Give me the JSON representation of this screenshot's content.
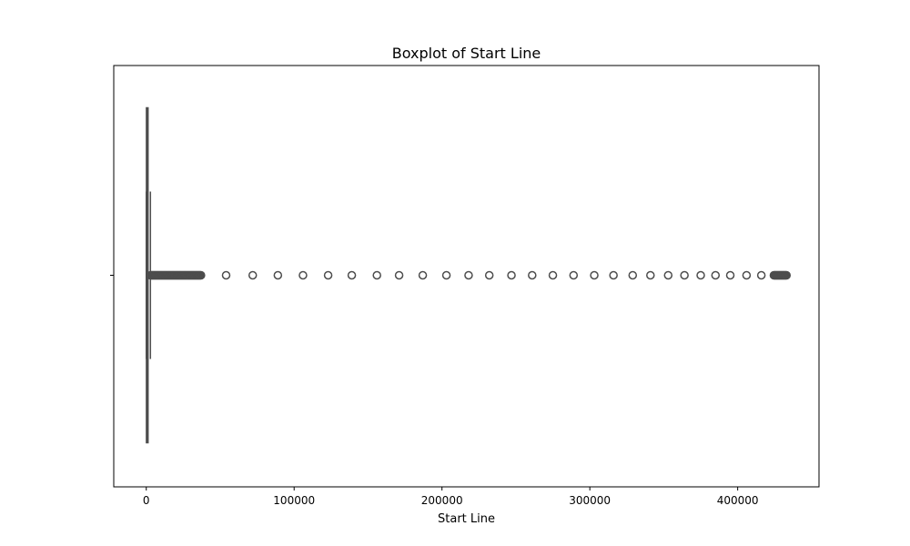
{
  "chart_data": {
    "type": "box",
    "orientation": "horizontal",
    "title": "Boxplot of Start Line",
    "xlabel": "Start Line",
    "ylabel": "",
    "xlim": [
      -22000,
      455000
    ],
    "x_ticks": [
      0,
      100000,
      200000,
      300000,
      400000
    ],
    "x_tick_labels": [
      "0",
      "100000",
      "200000",
      "300000",
      "400000"
    ],
    "grid": false,
    "box": {
      "q1": 100,
      "median": 500,
      "q3": 1200,
      "whisker_low": 1,
      "whisker_high": 2800
    },
    "outliers": [
      3000,
      3500,
      4000,
      4500,
      5000,
      5500,
      6000,
      6500,
      7000,
      7500,
      8000,
      8500,
      9000,
      9500,
      10000,
      10500,
      11000,
      11500,
      12000,
      12500,
      13000,
      13500,
      14000,
      14500,
      15000,
      15500,
      16000,
      16500,
      17000,
      17500,
      18000,
      18500,
      19000,
      19500,
      20000,
      20500,
      21000,
      21500,
      22000,
      22500,
      23000,
      23500,
      24000,
      24500,
      25000,
      25500,
      26000,
      26500,
      27000,
      27500,
      28000,
      28500,
      29000,
      29500,
      30000,
      30500,
      31000,
      31500,
      32000,
      32500,
      33000,
      33500,
      34000,
      34500,
      35000,
      35500,
      36000,
      36500,
      37000,
      54000,
      72000,
      89000,
      106000,
      123000,
      139000,
      156000,
      171000,
      187000,
      203000,
      218000,
      232000,
      247000,
      261000,
      275000,
      289000,
      303000,
      316000,
      329000,
      341000,
      353000,
      364000,
      375000,
      385000,
      395000,
      406000,
      416000,
      424500,
      425000,
      425500,
      426000,
      426500,
      427000,
      427500,
      428000,
      428500,
      429000,
      429500,
      430000,
      430500,
      431000,
      431500,
      432000,
      432500,
      433000
    ],
    "colors": {
      "box": "#4d4d4d",
      "outlier": "#4d4d4d",
      "axis": "#000000"
    }
  }
}
